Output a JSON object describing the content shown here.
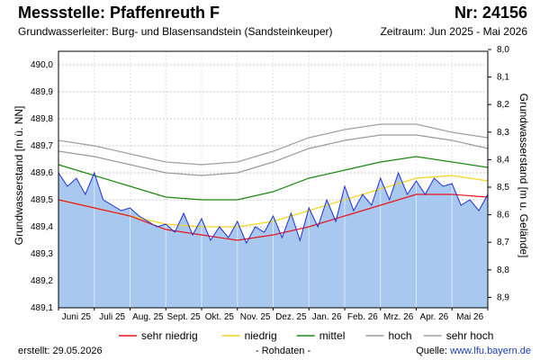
{
  "header": {
    "title": "Messstelle: Pfaffenreuth F",
    "number": "Nr: 24156",
    "aquifer": "Grundwasserleiter:   Burg- und Blasensandstein (Sandsteinkeuper)",
    "period": "Zeitraum: Jun 2025 - Mai 2026"
  },
  "footer": {
    "created": "erstellt:  29.05.2026",
    "raw": "- Rohdaten -",
    "source_label": "Quelle: ",
    "source_link": "www.lfu.bayern.de"
  },
  "colors": {
    "fill": "#a8c8f0",
    "measured": "#1f2fd8",
    "sehr_niedrig": "#e8161b",
    "niedrig": "#f2d621",
    "mittel": "#1a8a12",
    "hoch": "#9a9a9a",
    "sehr_hoch": "#a0a0a0",
    "grid": "#c8c8c8"
  },
  "chart_data": {
    "type": "line",
    "xlabel": "",
    "ylabel": "Grundwasserstand [m ü. NN]",
    "ylabel_right": "Grundwasserstand [m u. Gelände]",
    "categories": [
      "Juni 25",
      "Juli 25",
      "Aug. 25",
      "Sept. 25",
      "Okt. 25",
      "Nov. 25",
      "Dez. 25",
      "Jan. 26",
      "Feb. 26",
      "Mrz. 26",
      "Apr. 26",
      "Mai 26"
    ],
    "yticks": [
      "490,0",
      "489,9",
      "489,8",
      "489,7",
      "489,6",
      "489,5",
      "489,4",
      "489,3",
      "489,2",
      "489,1"
    ],
    "yticks_right": [
      "8,0",
      "8,1",
      "8,2",
      "8,3",
      "8,4",
      "8,5",
      "8,6",
      "8,7",
      "8,8",
      "8,9"
    ],
    "ylim": [
      489.1,
      490.05
    ],
    "xlim": [
      0,
      12
    ],
    "grid": true,
    "legend_position": "bottom",
    "series": [
      {
        "name": "sehr hoch",
        "key": "sehr_hoch",
        "x": [
          0,
          1,
          2,
          3,
          4,
          5,
          6,
          7,
          8,
          9,
          10,
          11,
          12
        ],
        "values": [
          489.72,
          489.7,
          489.67,
          489.64,
          489.63,
          489.64,
          489.68,
          489.73,
          489.76,
          489.78,
          489.78,
          489.75,
          489.73
        ]
      },
      {
        "name": "hoch",
        "key": "hoch",
        "x": [
          0,
          1,
          2,
          3,
          4,
          5,
          6,
          7,
          8,
          9,
          10,
          11,
          12
        ],
        "values": [
          489.68,
          489.66,
          489.63,
          489.6,
          489.59,
          489.6,
          489.64,
          489.69,
          489.72,
          489.74,
          489.74,
          489.72,
          489.69
        ]
      },
      {
        "name": "mittel",
        "key": "mittel",
        "x": [
          0,
          1,
          2,
          3,
          4,
          5,
          6,
          7,
          8,
          9,
          10,
          11,
          12
        ],
        "values": [
          489.63,
          489.59,
          489.55,
          489.51,
          489.5,
          489.5,
          489.53,
          489.58,
          489.61,
          489.64,
          489.66,
          489.64,
          489.62
        ]
      },
      {
        "name": "niedrig",
        "key": "niedrig",
        "x": [
          0,
          1,
          2,
          3,
          4,
          5,
          6,
          7,
          8,
          9,
          10,
          11,
          12
        ],
        "values": [
          489.5,
          489.47,
          489.44,
          489.41,
          489.4,
          489.4,
          489.42,
          489.46,
          489.5,
          489.54,
          489.58,
          489.59,
          489.57
        ]
      },
      {
        "name": "sehr niedrig",
        "key": "sehr_niedrig",
        "x": [
          0,
          1,
          2,
          3,
          4,
          5,
          6,
          7,
          8,
          9,
          10,
          11,
          12
        ],
        "values": [
          489.5,
          489.47,
          489.44,
          489.39,
          489.37,
          489.35,
          489.37,
          489.4,
          489.44,
          489.48,
          489.52,
          489.52,
          489.51
        ]
      },
      {
        "name": "",
        "key": "measured",
        "x": [
          0,
          0.25,
          0.5,
          0.75,
          1,
          1.25,
          1.5,
          1.75,
          2,
          2.25,
          2.5,
          2.75,
          3,
          3.25,
          3.5,
          3.75,
          4,
          4.25,
          4.5,
          4.75,
          5,
          5.25,
          5.5,
          5.75,
          6,
          6.25,
          6.5,
          6.75,
          7,
          7.25,
          7.5,
          7.75,
          8,
          8.25,
          8.5,
          8.75,
          9,
          9.25,
          9.5,
          9.75,
          10,
          10.25,
          10.5,
          10.75,
          11,
          11.25,
          11.5,
          11.75,
          12
        ],
        "values": [
          489.6,
          489.55,
          489.58,
          489.52,
          489.6,
          489.5,
          489.48,
          489.46,
          489.47,
          489.44,
          489.42,
          489.4,
          489.41,
          489.38,
          489.45,
          489.37,
          489.43,
          489.35,
          489.4,
          489.36,
          489.42,
          489.34,
          489.4,
          489.38,
          489.44,
          489.36,
          489.45,
          489.35,
          489.47,
          489.4,
          489.5,
          489.42,
          489.55,
          489.46,
          489.52,
          489.48,
          489.58,
          489.5,
          489.6,
          489.52,
          489.57,
          489.52,
          489.58,
          489.55,
          489.56,
          489.48,
          489.5,
          489.46,
          489.52
        ]
      }
    ],
    "legend": [
      {
        "label": "sehr niedrig",
        "key": "sehr_niedrig"
      },
      {
        "label": "niedrig",
        "key": "niedrig"
      },
      {
        "label": "mittel",
        "key": "mittel"
      },
      {
        "label": "hoch",
        "key": "hoch"
      },
      {
        "label": "sehr hoch",
        "key": "sehr_hoch"
      }
    ],
    "xtick_labels": [
      "Juni 25",
      "Juli 25",
      "Aug. 25",
      "Sept. 25",
      "Okt. 25",
      "Nov. 25",
      "Dez. 25",
      "Jan. 26",
      "Feb. 26",
      "Mrz. 26",
      "Apr. 26",
      "Mai 26"
    ]
  }
}
